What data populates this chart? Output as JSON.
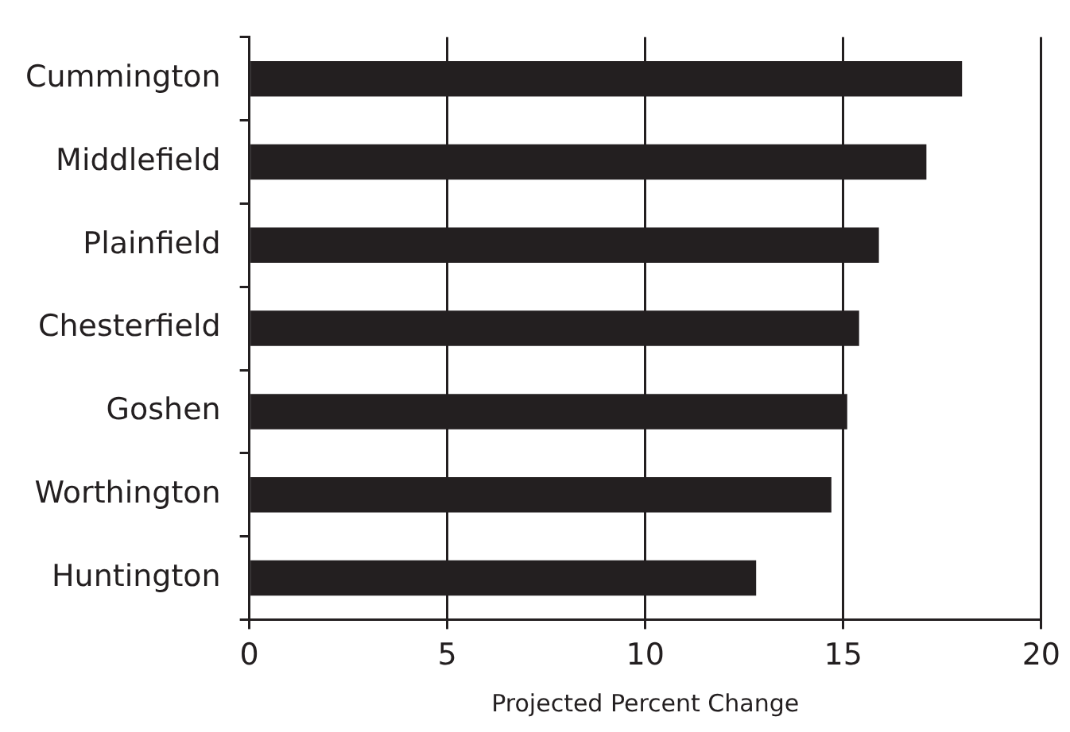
{
  "chart_data": {
    "type": "bar",
    "orientation": "horizontal",
    "xlabel": "Projected Percent Change",
    "categories": [
      "Cummington",
      "Middlefield",
      "Plainfield",
      "Chesterfield",
      "Goshen",
      "Worthington",
      "Huntington"
    ],
    "values": [
      18.0,
      17.1,
      15.9,
      15.4,
      15.1,
      14.7,
      12.8
    ],
    "color": "#231f20",
    "xlim": [
      0,
      20
    ],
    "xticks": [
      0,
      5,
      10,
      15,
      20
    ],
    "grid": "x",
    "legend": false
  }
}
